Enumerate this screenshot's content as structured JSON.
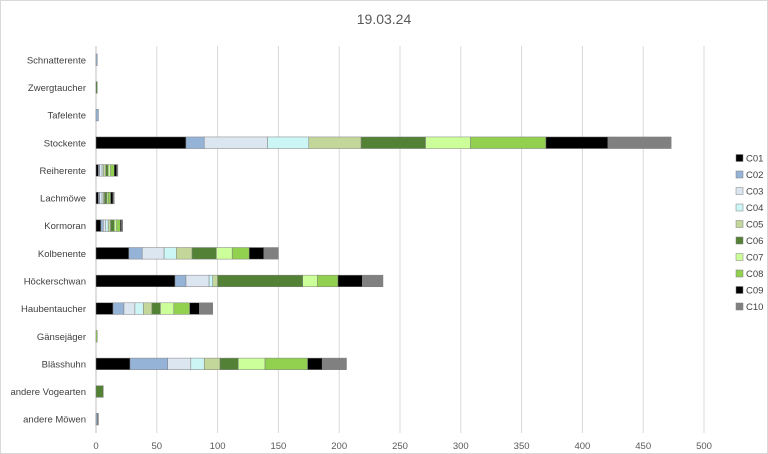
{
  "chart_data": {
    "type": "bar",
    "orientation": "horizontal",
    "stacked": true,
    "title": "19.03.24",
    "xlim": [
      0,
      500
    ],
    "x_ticks": [
      "0",
      "50",
      "100",
      "150",
      "200",
      "250",
      "300",
      "350",
      "400",
      "450",
      "500"
    ],
    "grid": "vertical",
    "legend_position": "right",
    "categories": [
      "Schnatterente",
      "Zwergtaucher",
      "Tafelente",
      "Stockente",
      "Reiherente",
      "Lachmöwe",
      "Kormoran",
      "Kolbenente",
      "Höckerschwan",
      "Haubentaucher",
      "Gänsejäger",
      "Blässhuhn",
      "andere Vogearten",
      "andere Möwen"
    ],
    "series": [
      {
        "name": "C01",
        "color": "#000000",
        "values": [
          0,
          0,
          0,
          74,
          2,
          2,
          4,
          27,
          65,
          14,
          0,
          28,
          0,
          0
        ]
      },
      {
        "name": "C02",
        "color": "#95b3d7",
        "values": [
          1,
          0,
          2,
          15,
          1,
          1,
          2,
          11,
          9,
          9,
          0,
          31,
          0,
          1
        ]
      },
      {
        "name": "C03",
        "color": "#dce6f1",
        "values": [
          0,
          0,
          0,
          52,
          2,
          2,
          2,
          18,
          19,
          9,
          0,
          19,
          0,
          0
        ]
      },
      {
        "name": "C04",
        "color": "#ccf5f5",
        "values": [
          0,
          0,
          0,
          34,
          1,
          1,
          2,
          10,
          3,
          7,
          0,
          11,
          0,
          0
        ]
      },
      {
        "name": "C05",
        "color": "#c4d79b",
        "values": [
          0,
          0,
          0,
          43,
          2,
          1,
          2,
          13,
          4,
          7,
          0,
          13,
          0,
          0
        ]
      },
      {
        "name": "C06",
        "color": "#538135",
        "values": [
          0,
          1,
          0,
          53,
          2,
          2,
          3,
          20,
          70,
          7,
          0,
          15,
          6,
          0
        ]
      },
      {
        "name": "C07",
        "color": "#ccff99",
        "values": [
          0,
          0,
          0,
          37,
          2,
          1,
          2,
          13,
          12,
          11,
          0,
          22,
          0,
          0
        ]
      },
      {
        "name": "C08",
        "color": "#92d050",
        "values": [
          0,
          0,
          0,
          62,
          3,
          2,
          3,
          14,
          17,
          13,
          1,
          35,
          0,
          0
        ]
      },
      {
        "name": "C09",
        "color": "#000000",
        "values": [
          0,
          0,
          0,
          51,
          2,
          2,
          1,
          12,
          20,
          8,
          0,
          12,
          0,
          0
        ]
      },
      {
        "name": "C10",
        "color": "#808080",
        "values": [
          0,
          0,
          0,
          52,
          1,
          1,
          1,
          12,
          17,
          11,
          0,
          20,
          0,
          1
        ]
      }
    ]
  }
}
